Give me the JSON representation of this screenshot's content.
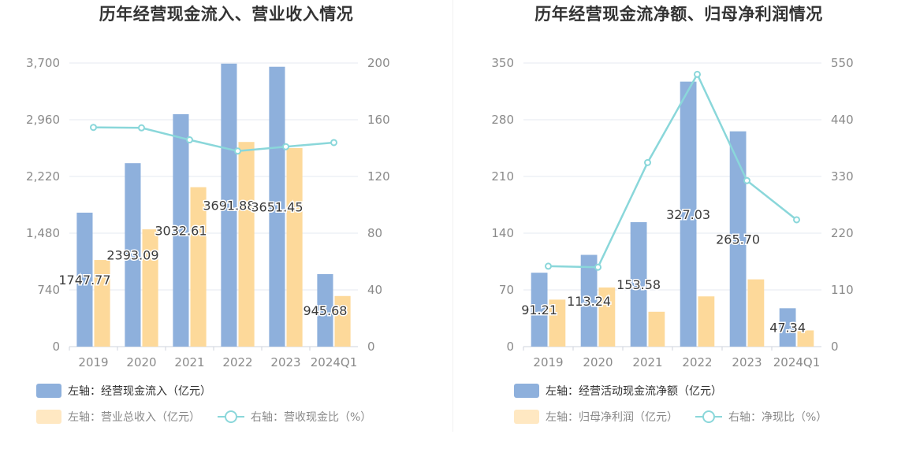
{
  "left": {
    "title": "历年经营现金流入、营业收入情况",
    "legend": {
      "bar1": "左轴：经营现金流入（亿元）",
      "bar2": "左轴：营业总收入（亿元）",
      "line": "右轴：营收现金比（%）"
    }
  },
  "right": {
    "title": "历年经营现金流净额、归母净利润情况",
    "legend": {
      "bar1": "左轴：经营活动现金流净额（亿元）",
      "bar2": "左轴：归母净利润（亿元）",
      "line": "右轴：净现比（%）"
    }
  },
  "colors": {
    "bar1": "#8eb0dc",
    "bar2": "#fdd99a",
    "line": "#8ad7da",
    "grid": "#e6e9f2",
    "tick": "#8a8a8a"
  },
  "chart_data": [
    {
      "type": "bar",
      "title": "历年经营现金流入、营业收入情况",
      "categories": [
        "2019",
        "2020",
        "2021",
        "2022",
        "2023",
        "2024Q1"
      ],
      "left_axis": {
        "ticks": [
          "0",
          "740",
          "1,480",
          "2,220",
          "2,960",
          "3,700"
        ],
        "ylim": [
          0,
          3700
        ]
      },
      "right_axis": {
        "ticks": [
          "0",
          "40",
          "80",
          "120",
          "160",
          "200"
        ],
        "ylim": [
          0,
          200
        ]
      },
      "series": [
        {
          "name": "左轴：经营现金流入（亿元）",
          "axis": "left",
          "kind": "bar",
          "values": [
            1747.77,
            2393.09,
            3032.61,
            3691.88,
            3651.45,
            945.68
          ],
          "labels": [
            "1747.77",
            "2393.09",
            "3032.61",
            "3691.88",
            "3651.45",
            "945.68"
          ]
        },
        {
          "name": "左轴：营业总收入（亿元）",
          "axis": "left",
          "kind": "bar",
          "values": [
            1130,
            1530,
            2080,
            2670,
            2590,
            660
          ]
        },
        {
          "name": "右轴：营收现金比（%）",
          "axis": "right",
          "kind": "line",
          "values": [
            154.6,
            154.3,
            145.8,
            137.9,
            141,
            143.9
          ]
        }
      ],
      "grid": true,
      "legend_position": "bottom-left"
    },
    {
      "type": "bar",
      "title": "历年经营现金流净额、归母净利润情况",
      "categories": [
        "2019",
        "2020",
        "2021",
        "2022",
        "2023",
        "2024Q1"
      ],
      "left_axis": {
        "ticks": [
          "0",
          "70",
          "140",
          "210",
          "280",
          "350"
        ],
        "ylim": [
          0,
          350
        ]
      },
      "right_axis": {
        "ticks": [
          "0",
          "110",
          "220",
          "330",
          "440",
          "550"
        ],
        "ylim": [
          0,
          550
        ]
      },
      "series": [
        {
          "name": "左轴：经营活动现金流净额（亿元）",
          "axis": "left",
          "kind": "bar",
          "values": [
            91.21,
            113.24,
            153.58,
            327.03,
            265.7,
            47.34
          ],
          "labels": [
            "91.21",
            "113.24",
            "153.58",
            "327.03",
            "265.70",
            "47.34"
          ]
        },
        {
          "name": "左轴：归母净利润（亿元）",
          "axis": "left",
          "kind": "bar",
          "values": [
            58,
            73,
            43,
            62,
            83,
            20
          ]
        },
        {
          "name": "右轴：净现比（%）",
          "axis": "right",
          "kind": "line",
          "values": [
            156,
            154,
            357,
            528,
            322,
            246
          ]
        }
      ],
      "grid": true,
      "legend_position": "bottom-left"
    }
  ]
}
